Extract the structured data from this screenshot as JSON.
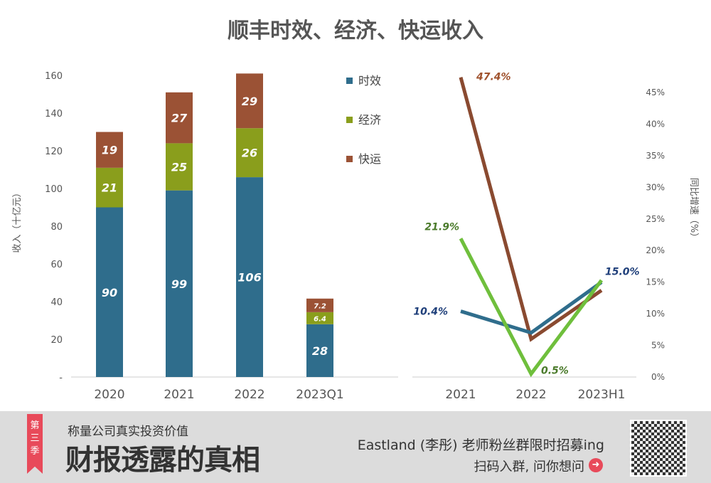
{
  "chart_data": [
    {
      "type": "bar",
      "stacked": true,
      "title": "顺丰时效、经济、快运收入",
      "ylabel": "收入（十亿元）",
      "ylim": [
        0,
        160
      ],
      "yticks": [
        "-",
        "20",
        "40",
        "60",
        "80",
        "100",
        "120",
        "140",
        "160"
      ],
      "categories": [
        "2020",
        "2021",
        "2022",
        "2023Q1"
      ],
      "series": [
        {
          "name": "时效",
          "color": "#2f6d8c",
          "values": [
            90,
            99,
            106,
            28
          ],
          "labels": [
            "90",
            "99",
            "106",
            "28"
          ]
        },
        {
          "name": "经济",
          "color": "#8a9e1c",
          "values": [
            21,
            25,
            26,
            6.4
          ],
          "labels": [
            "21",
            "25",
            "26",
            "6.4"
          ]
        },
        {
          "name": "快运",
          "color": "#9b5235",
          "values": [
            19,
            27,
            29,
            7.2
          ],
          "labels": [
            "19",
            "27",
            "29",
            "7.2"
          ]
        }
      ],
      "legend": "top-right"
    },
    {
      "type": "line",
      "ylabel": "同比增速（%）",
      "ylim": [
        0,
        45
      ],
      "yaxis": "right",
      "yticks": [
        "0%",
        "5%",
        "10%",
        "15%",
        "20%",
        "25%",
        "30%",
        "35%",
        "40%",
        "45%"
      ],
      "categories": [
        "2021",
        "2022",
        "2023H1"
      ],
      "series": [
        {
          "name": "时效",
          "color": "#2f6d8c",
          "values": [
            10.4,
            7.0,
            15.0
          ]
        },
        {
          "name": "经济",
          "color": "#6fbf3c",
          "values": [
            21.9,
            0.5,
            15.3
          ]
        },
        {
          "name": "快运",
          "color": "#8a4a30",
          "values": [
            47.4,
            6.0,
            13.7
          ]
        }
      ],
      "annotations": [
        {
          "text": "10.4%",
          "color": "#1f3f7a",
          "series": 0,
          "point": 0
        },
        {
          "text": "15.0%",
          "color": "#1f3f7a",
          "series": 0,
          "point": 2
        },
        {
          "text": "21.9%",
          "color": "#4a7a2a",
          "series": 1,
          "point": 0
        },
        {
          "text": "0.5%",
          "color": "#4a7a2a",
          "series": 1,
          "point": 1
        },
        {
          "text": "47.4%",
          "color": "#a0522d",
          "series": 2,
          "point": 0
        }
      ]
    }
  ],
  "banner": {
    "ribbon": "第三季",
    "slogan": "称量公司真实投资价值",
    "headline": "财报透露的真相",
    "promo": "Eastland (李彤) 老师粉丝群限时招募ing",
    "scan": "扫码入群, 问你想问",
    "arrow_icon": "arrow-right-circle-icon",
    "qr": "qr-code"
  }
}
